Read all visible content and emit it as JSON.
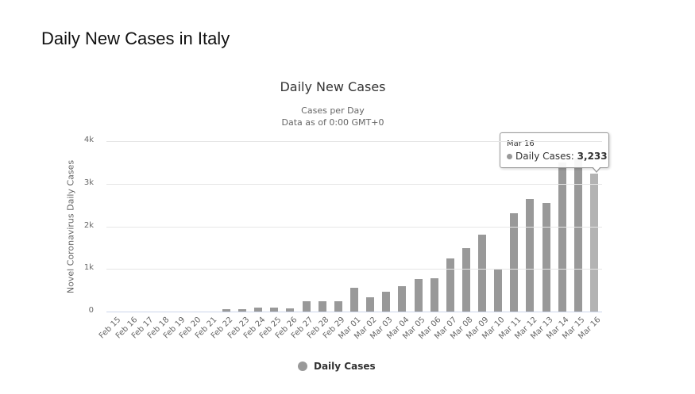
{
  "page": {
    "title": "Daily New Cases in Italy"
  },
  "chart": {
    "title": "Daily New Cases",
    "subtitle_line1": "Cases per Day",
    "subtitle_line2": "Data as of 0:00 GMT+0",
    "ylabel": "Novel Coronavirus Daily Cases",
    "yticks": [
      "0",
      "1k",
      "2k",
      "3k",
      "4k"
    ],
    "legend_label": "Daily Cases",
    "bar_color": "#999999",
    "hover_bar_color": "#b3b3b3",
    "tooltip": {
      "date": "Mar 16",
      "series": "Daily Cases: ",
      "value": "3,233"
    }
  },
  "chart_data": {
    "type": "bar",
    "title": "Daily New Cases",
    "subtitle": "Cases per Day / Data as of 0:00 GMT+0",
    "xlabel": "",
    "ylabel": "Novel Coronavirus Daily Cases",
    "ylim": [
      0,
      4000
    ],
    "yticks": [
      0,
      1000,
      2000,
      3000,
      4000
    ],
    "grid": true,
    "legend_position": "bottom",
    "categories": [
      "Feb 15",
      "Feb 16",
      "Feb 17",
      "Feb 18",
      "Feb 19",
      "Feb 20",
      "Feb 21",
      "Feb 22",
      "Feb 23",
      "Feb 24",
      "Feb 25",
      "Feb 26",
      "Feb 27",
      "Feb 28",
      "Feb 29",
      "Mar 01",
      "Mar 02",
      "Mar 03",
      "Mar 04",
      "Mar 05",
      "Mar 06",
      "Mar 07",
      "Mar 08",
      "Mar 09",
      "Mar 10",
      "Mar 11",
      "Mar 12",
      "Mar 13",
      "Mar 14",
      "Mar 15",
      "Mar 16"
    ],
    "series": [
      {
        "name": "Daily Cases",
        "values": [
          0,
          0,
          0,
          0,
          0,
          0,
          0,
          62,
          53,
          97,
          93,
          78,
          250,
          238,
          240,
          566,
          342,
          466,
          587,
          769,
          778,
          1247,
          1492,
          1797,
          977,
          2313,
          2651,
          2547,
          3497,
          3590,
          3233
        ]
      }
    ],
    "annotations": [
      {
        "type": "tooltip",
        "x": "Mar 16",
        "text": "Daily Cases: 3,233"
      }
    ]
  }
}
